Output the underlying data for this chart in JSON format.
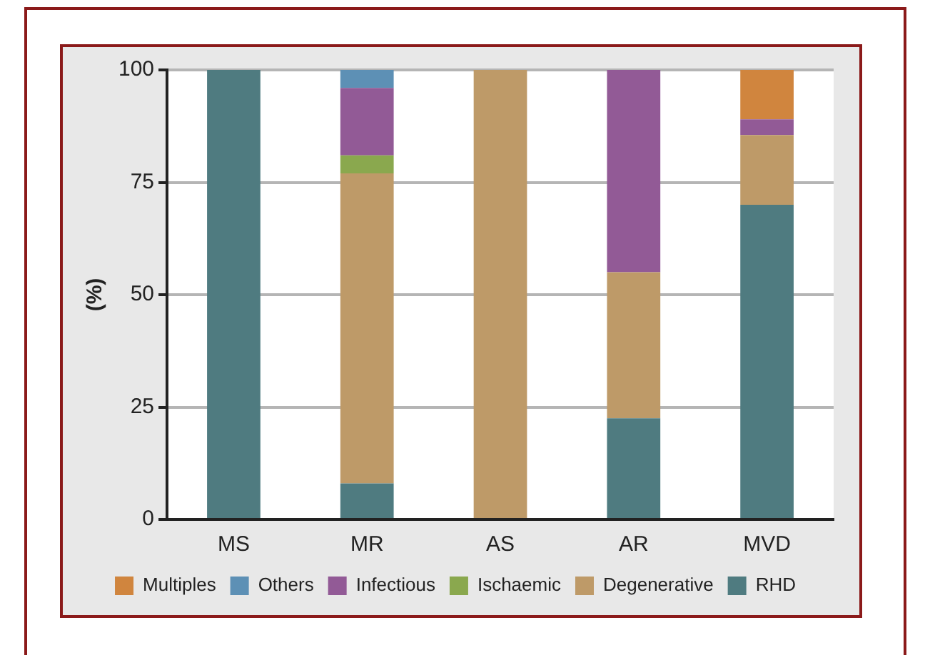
{
  "chart_data": {
    "type": "bar",
    "stacked": true,
    "ylabel": "(%)",
    "categories": [
      "MS",
      "MR",
      "AS",
      "AR",
      "MVD"
    ],
    "series": [
      {
        "name": "RHD",
        "color": "#4f7b80",
        "values": [
          100,
          8,
          0,
          22.5,
          70
        ]
      },
      {
        "name": "Degenerative",
        "color": "#be9a68",
        "values": [
          0,
          69,
          100,
          32.5,
          15.5
        ]
      },
      {
        "name": "Ischaemic",
        "color": "#8aa84e",
        "values": [
          0,
          4,
          0,
          0,
          0
        ]
      },
      {
        "name": "Infectious",
        "color": "#925a96",
        "values": [
          0,
          15,
          0,
          45,
          3.5
        ]
      },
      {
        "name": "Others",
        "color": "#5d90b5",
        "values": [
          0,
          4,
          0,
          0,
          0
        ]
      },
      {
        "name": "Multiples",
        "color": "#d0853e",
        "values": [
          0,
          0,
          0,
          0,
          11
        ]
      }
    ],
    "ylim": [
      0,
      100
    ],
    "yticks": [
      0,
      25,
      50,
      75,
      100
    ],
    "grid": "y",
    "legend": "bottom"
  }
}
